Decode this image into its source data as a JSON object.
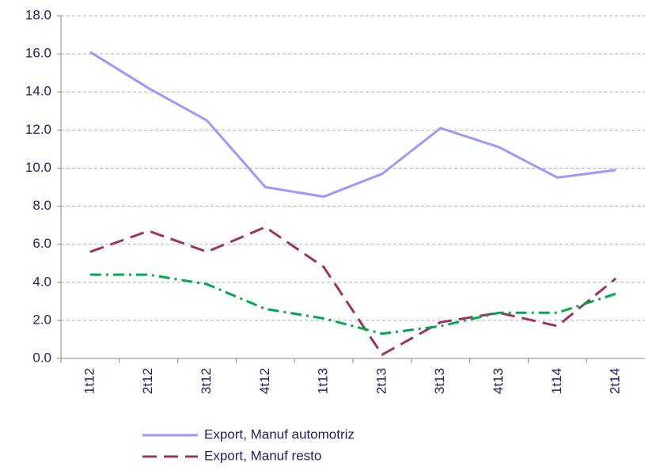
{
  "chart_data": {
    "type": "line",
    "categories": [
      "1t12",
      "2t12",
      "3t12",
      "4t12",
      "1t13",
      "2t13",
      "3t13",
      "4t13",
      "1t14",
      "2t14"
    ],
    "series": [
      {
        "name": "Export, Manuf automotriz",
        "color": "#9999ff",
        "line_style": "solid",
        "values": [
          16.1,
          14.2,
          12.5,
          9.0,
          8.5,
          9.7,
          12.1,
          11.1,
          9.5,
          9.9
        ]
      },
      {
        "name": "Export, Manuf resto",
        "color": "#993366",
        "line_style": "dashed",
        "values": [
          5.6,
          6.7,
          5.6,
          6.9,
          4.8,
          0.2,
          1.9,
          2.4,
          1.7,
          4.2
        ]
      },
      {
        "color": "#00a84f",
        "line_style": "dashdot",
        "values": [
          4.4,
          4.4,
          3.9,
          2.6,
          2.1,
          1.3,
          1.7,
          2.4,
          2.4,
          3.4
        ]
      }
    ],
    "ylim": [
      0,
      18
    ],
    "yticks": [
      {
        "value": 0,
        "label": "0.0"
      },
      {
        "value": 2,
        "label": "2.0"
      },
      {
        "value": 4,
        "label": "4.0"
      },
      {
        "value": 6,
        "label": "6.0"
      },
      {
        "value": 8,
        "label": "8.0"
      },
      {
        "value": 10,
        "label": "10.0"
      },
      {
        "value": 12,
        "label": "12.0"
      },
      {
        "value": 14,
        "label": "14.0"
      },
      {
        "value": 16,
        "label": "16.0"
      },
      {
        "value": 18,
        "label": "18.0"
      }
    ],
    "grid": true
  }
}
